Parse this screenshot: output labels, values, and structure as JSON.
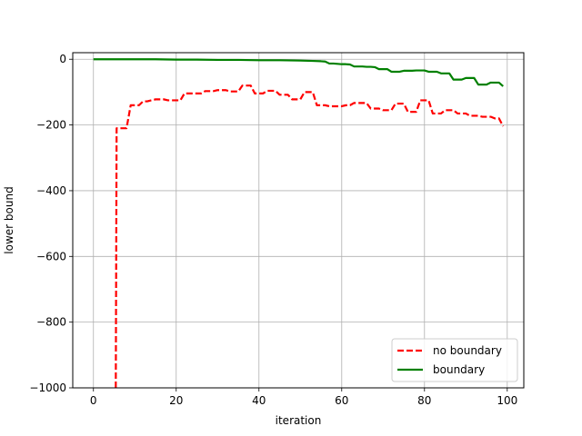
{
  "chart_data": {
    "type": "line",
    "title": "",
    "xlabel": "iteration",
    "ylabel": "lower bound",
    "xlim": [
      -5,
      104
    ],
    "ylim": [
      -1000,
      20
    ],
    "xticks": [
      0,
      20,
      40,
      60,
      80,
      100
    ],
    "yticks": [
      0,
      -200,
      -400,
      -600,
      -800,
      -1000
    ],
    "xtick_labels": [
      "0",
      "20",
      "40",
      "60",
      "80",
      "100"
    ],
    "ytick_labels": [
      "0",
      "−200",
      "−400",
      "−600",
      "−800",
      "−1000"
    ],
    "grid": true,
    "legend_position": "lower-right",
    "series": [
      {
        "name": "no boundary",
        "color": "#ff0000",
        "style": "dashed",
        "x": [
          5.4,
          5.6,
          6,
          7,
          8,
          9,
          10,
          11,
          12,
          13,
          14,
          15,
          16,
          17,
          18,
          19,
          20,
          21,
          22,
          23,
          24,
          25,
          26,
          27,
          28,
          29,
          30,
          31,
          32,
          33,
          34,
          35,
          36,
          37,
          38,
          39,
          40,
          41,
          42,
          43,
          44,
          45,
          46,
          47,
          48,
          49,
          50,
          51,
          52,
          53,
          54,
          55,
          56,
          57,
          58,
          59,
          60,
          61,
          62,
          63,
          64,
          65,
          66,
          67,
          68,
          69,
          70,
          71,
          72,
          73,
          74,
          75,
          76,
          77,
          78,
          79,
          80,
          81,
          82,
          83,
          84,
          85,
          86,
          87,
          88,
          89,
          90,
          91,
          92,
          93,
          94,
          95,
          96,
          97,
          98,
          99
        ],
        "y": [
          -1000,
          -210,
          -210,
          -210,
          -210,
          -140,
          -140,
          -140,
          -128,
          -128,
          -125,
          -122,
          -122,
          -122,
          -125,
          -125,
          -125,
          -125,
          -104,
          -104,
          -104,
          -104,
          -104,
          -97,
          -97,
          -97,
          -94,
          -94,
          -94,
          -98,
          -98,
          -98,
          -80,
          -80,
          -80,
          -104,
          -104,
          -104,
          -96,
          -96,
          -96,
          -108,
          -108,
          -108,
          -122,
          -122,
          -122,
          -100,
          -100,
          -100,
          -140,
          -140,
          -140,
          -143,
          -143,
          -143,
          -143,
          -140,
          -140,
          -133,
          -133,
          -133,
          -133,
          -150,
          -150,
          -150,
          -155,
          -155,
          -155,
          -135,
          -135,
          -135,
          -160,
          -160,
          -160,
          -125,
          -125,
          -125,
          -165,
          -165,
          -165,
          -155,
          -155,
          -155,
          -165,
          -165,
          -165,
          -172,
          -172,
          -172,
          -175,
          -175,
          -175,
          -180,
          -180,
          -204
        ]
      },
      {
        "name": "boundary",
        "color": "#008000",
        "style": "solid",
        "x": [
          0,
          5,
          10,
          15,
          20,
          25,
          30,
          35,
          40,
          45,
          50,
          53,
          55,
          56,
          57,
          58,
          59,
          60,
          61,
          62,
          63,
          64,
          65,
          66,
          67,
          68,
          69,
          70,
          71,
          72,
          73,
          74,
          75,
          76,
          77,
          78,
          79,
          80,
          81,
          82,
          83,
          84,
          85,
          86,
          87,
          88,
          89,
          90,
          91,
          92,
          93,
          94,
          95,
          96,
          97,
          98,
          99
        ],
        "y": [
          0,
          0,
          0,
          0,
          -1,
          -1,
          -2,
          -2,
          -3,
          -3,
          -4,
          -5,
          -6,
          -7,
          -13,
          -13,
          -14,
          -15,
          -15,
          -16,
          -22,
          -22,
          -22,
          -23,
          -23,
          -24,
          -30,
          -30,
          -30,
          -38,
          -38,
          -38,
          -35,
          -35,
          -35,
          -34,
          -34,
          -34,
          -38,
          -38,
          -38,
          -43,
          -43,
          -43,
          -62,
          -62,
          -62,
          -57,
          -57,
          -57,
          -77,
          -77,
          -77,
          -71,
          -71,
          -71,
          -82
        ]
      }
    ]
  }
}
